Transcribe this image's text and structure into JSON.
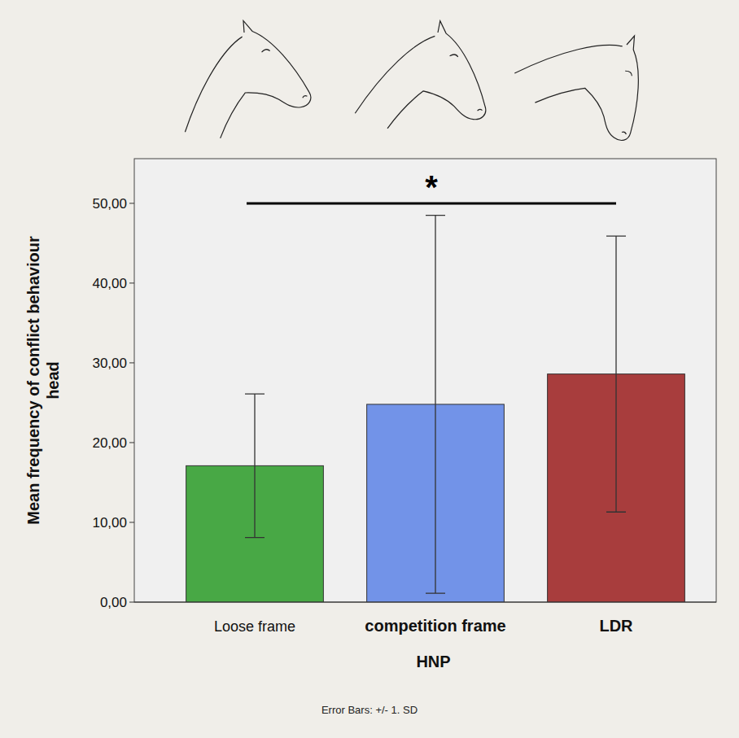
{
  "chart_data": {
    "type": "bar",
    "x_label": "HNP",
    "y_label": "Mean frequency of  conflict behaviour head",
    "footnote": "Error Bars: +/- 1. SD",
    "categories": [
      "Loose frame",
      "competition frame",
      "LDR"
    ],
    "values": [
      17.1,
      24.8,
      28.6
    ],
    "errors": [
      9.0,
      23.7,
      17.3
    ],
    "colors": [
      "#48a845",
      "#7293e8",
      "#a83d3d"
    ],
    "ylim": [
      0,
      55.6
    ],
    "yticks": [
      {
        "value": 0,
        "label": "0,00"
      },
      {
        "value": 10,
        "label": "10,00"
      },
      {
        "value": 20,
        "label": "20,00"
      },
      {
        "value": 30,
        "label": "30,00"
      },
      {
        "value": 40,
        "label": "40,00"
      },
      {
        "value": 50,
        "label": "50,00"
      }
    ],
    "grid": false,
    "annotations": [
      {
        "text": "*",
        "from": "Loose frame",
        "to": "LDR",
        "y": 50
      }
    ]
  }
}
